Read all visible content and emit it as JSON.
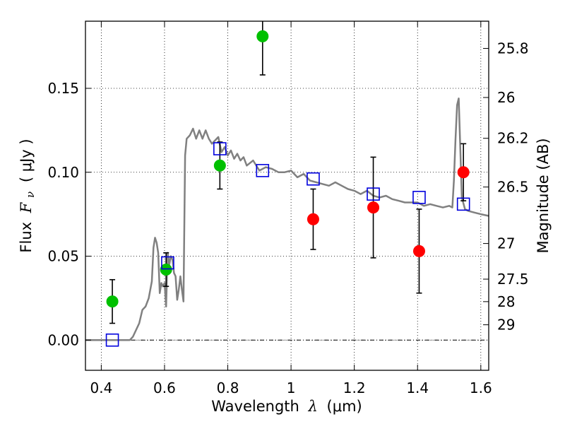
{
  "chart_data": {
    "type": "scatter",
    "title": "",
    "xlabel_text": "Wavelength",
    "xlabel_symbol": "λ",
    "xlabel_unit": "(μm)",
    "ylabel_text": "Flux",
    "ylabel_symbol": "F",
    "ylabel_subscript": "ν",
    "ylabel_unit": "( μJy )",
    "y2label": "Magnitude (AB)",
    "xlim": [
      0.35,
      1.625
    ],
    "ylim": [
      -0.018,
      0.19
    ],
    "grid": true,
    "xticks": [
      {
        "value": 0.4,
        "label": "0.4"
      },
      {
        "value": 0.6,
        "label": "0.6"
      },
      {
        "value": 0.8,
        "label": "0.8"
      },
      {
        "value": 1.0,
        "label": "1"
      },
      {
        "value": 1.2,
        "label": "1.2"
      },
      {
        "value": 1.4,
        "label": "1.4"
      },
      {
        "value": 1.6,
        "label": "1.6"
      }
    ],
    "yticks": [
      {
        "value": 0.0,
        "label": "0.00"
      },
      {
        "value": 0.05,
        "label": "0.05"
      },
      {
        "value": 0.1,
        "label": "0.10"
      },
      {
        "value": 0.15,
        "label": "0.15"
      }
    ],
    "magticks": [
      {
        "value": 25.8,
        "label": "25.8"
      },
      {
        "value": 26.0,
        "label": "26"
      },
      {
        "value": 26.2,
        "label": "26.2"
      },
      {
        "value": 26.5,
        "label": "26.5"
      },
      {
        "value": 27.0,
        "label": "27"
      },
      {
        "value": 27.5,
        "label": "27.5"
      },
      {
        "value": 28.0,
        "label": "28"
      },
      {
        "value": 29.0,
        "label": "29"
      }
    ],
    "zero_line": 0.0,
    "model_sed": {
      "color": "#808080",
      "x": [
        0.35,
        0.49,
        0.5,
        0.52,
        0.53,
        0.54,
        0.55,
        0.56,
        0.565,
        0.57,
        0.575,
        0.58,
        0.585,
        0.59,
        0.595,
        0.6,
        0.605,
        0.61,
        0.615,
        0.62,
        0.625,
        0.63,
        0.635,
        0.64,
        0.645,
        0.65,
        0.655,
        0.66,
        0.665,
        0.67,
        0.68,
        0.69,
        0.7,
        0.71,
        0.72,
        0.73,
        0.74,
        0.75,
        0.76,
        0.77,
        0.78,
        0.79,
        0.8,
        0.81,
        0.82,
        0.83,
        0.84,
        0.85,
        0.86,
        0.88,
        0.9,
        0.92,
        0.94,
        0.96,
        0.98,
        1.0,
        1.02,
        1.04,
        1.06,
        1.08,
        1.1,
        1.12,
        1.14,
        1.16,
        1.18,
        1.2,
        1.22,
        1.24,
        1.26,
        1.28,
        1.3,
        1.32,
        1.34,
        1.36,
        1.38,
        1.4,
        1.42,
        1.44,
        1.46,
        1.48,
        1.5,
        1.51,
        1.515,
        1.52,
        1.525,
        1.53,
        1.535,
        1.54,
        1.55,
        1.56,
        1.58,
        1.6,
        1.625
      ],
      "y": [
        0.0,
        0.0,
        0.002,
        0.01,
        0.018,
        0.02,
        0.025,
        0.035,
        0.055,
        0.061,
        0.058,
        0.052,
        0.028,
        0.034,
        0.032,
        0.034,
        0.02,
        0.052,
        0.045,
        0.05,
        0.048,
        0.04,
        0.038,
        0.024,
        0.03,
        0.038,
        0.03,
        0.023,
        0.11,
        0.12,
        0.122,
        0.126,
        0.12,
        0.125,
        0.12,
        0.125,
        0.12,
        0.117,
        0.119,
        0.121,
        0.112,
        0.115,
        0.11,
        0.113,
        0.108,
        0.111,
        0.107,
        0.109,
        0.104,
        0.107,
        0.101,
        0.103,
        0.102,
        0.1,
        0.1,
        0.101,
        0.097,
        0.099,
        0.095,
        0.094,
        0.093,
        0.092,
        0.094,
        0.092,
        0.09,
        0.089,
        0.087,
        0.089,
        0.086,
        0.085,
        0.086,
        0.084,
        0.083,
        0.082,
        0.082,
        0.082,
        0.08,
        0.081,
        0.08,
        0.079,
        0.08,
        0.079,
        0.095,
        0.12,
        0.14,
        0.144,
        0.115,
        0.085,
        0.078,
        0.077,
        0.076,
        0.075,
        0.074
      ]
    },
    "series": [
      {
        "marker": "circle",
        "color": "#00c000",
        "points": [
          {
            "x": 0.435,
            "y": 0.023,
            "err": 0.013
          },
          {
            "x": 0.605,
            "y": 0.042,
            "err": 0.01
          },
          {
            "x": 0.775,
            "y": 0.104,
            "err": 0.014
          },
          {
            "x": 0.91,
            "y": 0.181,
            "err": 0.023
          }
        ]
      },
      {
        "marker": "circle",
        "color": "#ff0000",
        "points": [
          {
            "x": 1.07,
            "y": 0.072,
            "err": 0.018
          },
          {
            "x": 1.26,
            "y": 0.079,
            "err": 0.03
          },
          {
            "x": 1.405,
            "y": 0.053,
            "err": 0.025
          },
          {
            "x": 1.545,
            "y": 0.1,
            "err": 0.017
          }
        ]
      },
      {
        "marker": "square",
        "color": "#0000dd",
        "points": [
          {
            "x": 0.435,
            "y": 0.0
          },
          {
            "x": 0.61,
            "y": 0.046
          },
          {
            "x": 0.775,
            "y": 0.114
          },
          {
            "x": 0.91,
            "y": 0.101
          },
          {
            "x": 1.07,
            "y": 0.096
          },
          {
            "x": 1.26,
            "y": 0.087
          },
          {
            "x": 1.405,
            "y": 0.085
          },
          {
            "x": 1.545,
            "y": 0.081
          }
        ]
      }
    ]
  }
}
